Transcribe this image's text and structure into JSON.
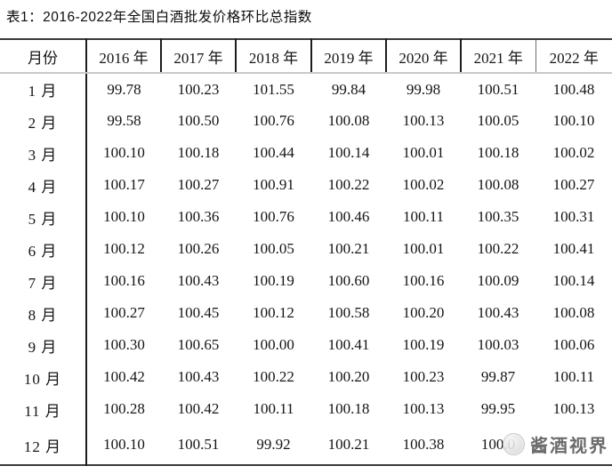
{
  "title": "表1：2016-2022年全国白酒批发价格环比总指数",
  "table": {
    "month_header": "月份",
    "year_headers": [
      "2016 年",
      "2017 年",
      "2018 年",
      "2019 年",
      "2020 年",
      "2021 年",
      "2022 年"
    ],
    "rows": [
      {
        "month": "1 月",
        "values": [
          "99.78",
          "100.23",
          "101.55",
          "99.84",
          "99.98",
          "100.51",
          "100.48"
        ]
      },
      {
        "month": "2 月",
        "values": [
          "99.58",
          "100.50",
          "100.76",
          "100.08",
          "100.13",
          "100.05",
          "100.10"
        ]
      },
      {
        "month": "3 月",
        "values": [
          "100.10",
          "100.18",
          "100.44",
          "100.14",
          "100.01",
          "100.18",
          "100.02"
        ]
      },
      {
        "month": "4 月",
        "values": [
          "100.17",
          "100.27",
          "100.91",
          "100.22",
          "100.02",
          "100.08",
          "100.27"
        ]
      },
      {
        "month": "5 月",
        "values": [
          "100.10",
          "100.36",
          "100.76",
          "100.46",
          "100.11",
          "100.35",
          "100.31"
        ]
      },
      {
        "month": "6 月",
        "values": [
          "100.12",
          "100.26",
          "100.05",
          "100.21",
          "100.01",
          "100.22",
          "100.41"
        ]
      },
      {
        "month": "7 月",
        "values": [
          "100.16",
          "100.43",
          "100.19",
          "100.60",
          "100.16",
          "100.09",
          "100.14"
        ]
      },
      {
        "month": "8 月",
        "values": [
          "100.27",
          "100.45",
          "100.12",
          "100.58",
          "100.20",
          "100.43",
          "100.08"
        ]
      },
      {
        "month": "9 月",
        "values": [
          "100.30",
          "100.65",
          "100.00",
          "100.41",
          "100.19",
          "100.03",
          "100.06"
        ]
      },
      {
        "month": "10 月",
        "values": [
          "100.42",
          "100.43",
          "100.22",
          "100.20",
          "100.23",
          "99.87",
          "100.11"
        ]
      },
      {
        "month": "11 月",
        "values": [
          "100.28",
          "100.42",
          "100.11",
          "100.18",
          "100.13",
          "99.95",
          "100.13"
        ]
      },
      {
        "month": "12 月",
        "values": [
          "100.10",
          "100.51",
          "99.92",
          "100.21",
          "100.38",
          "100.0",
          ""
        ]
      }
    ],
    "note_obscured_cells": "2021年12月 value partially hidden and 2022年12月 value fully hidden behind watermark"
  },
  "watermark": {
    "logo": "circle-logo",
    "text": "酱酒视界"
  },
  "colors": {
    "background": "#ffffff",
    "text": "#141414",
    "border_dark": "#3a3a3a",
    "border_vertical": "#1c1c1c",
    "header_underline": "#c9c9c9",
    "watermark_gray": "#575757"
  }
}
